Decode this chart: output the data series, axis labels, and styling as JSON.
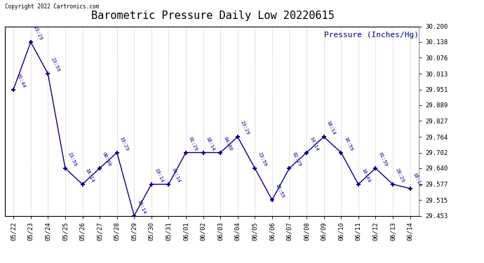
{
  "title": "Barometric Pressure Daily Low 20220615",
  "ylabel": "Pressure (Inches/Hg)",
  "copyright": "Copyright 2022 Cartronics.com",
  "line_color": "#00008B",
  "background_color": "#ffffff",
  "grid_color": "#c8c8c8",
  "ylim": [
    29.453,
    30.2
  ],
  "yticks": [
    29.453,
    29.515,
    29.577,
    29.64,
    29.702,
    29.764,
    29.827,
    29.889,
    29.951,
    30.013,
    30.076,
    30.138,
    30.2
  ],
  "data_points": [
    {
      "date": "05/22",
      "time": "01:44",
      "value": 29.951
    },
    {
      "date": "05/23",
      "time": "23:29",
      "value": 30.138
    },
    {
      "date": "05/24",
      "time": "23:59",
      "value": 30.013
    },
    {
      "date": "05/25",
      "time": "23:59",
      "value": 29.64
    },
    {
      "date": "05/26",
      "time": "18:14",
      "value": 29.577
    },
    {
      "date": "05/27",
      "time": "06:00",
      "value": 29.64
    },
    {
      "date": "05/28",
      "time": "19:29",
      "value": 29.702
    },
    {
      "date": "05/29",
      "time": "18:14",
      "value": 29.453
    },
    {
      "date": "05/30",
      "time": "19:14",
      "value": 29.577
    },
    {
      "date": "05/31",
      "time": "01:14",
      "value": 29.577
    },
    {
      "date": "06/01",
      "time": "01:29",
      "value": 29.702
    },
    {
      "date": "06/02",
      "time": "18:14",
      "value": 29.702
    },
    {
      "date": "06/03",
      "time": "04:00",
      "value": 29.702
    },
    {
      "date": "06/04",
      "time": "23:29",
      "value": 29.764
    },
    {
      "date": "06/05",
      "time": "23:59",
      "value": 29.64
    },
    {
      "date": "06/06",
      "time": "15:59",
      "value": 29.515
    },
    {
      "date": "06/07",
      "time": "02:29",
      "value": 29.64
    },
    {
      "date": "06/08",
      "time": "14:14",
      "value": 29.702
    },
    {
      "date": "06/09",
      "time": "18:14",
      "value": 29.764
    },
    {
      "date": "06/10",
      "time": "16:59",
      "value": 29.702
    },
    {
      "date": "06/11",
      "time": "10:44",
      "value": 29.577
    },
    {
      "date": "06/12",
      "time": "01:59",
      "value": 29.64
    },
    {
      "date": "06/13",
      "time": "20:29",
      "value": 29.577
    },
    {
      "date": "06/14",
      "time": "18:14",
      "value": 29.56
    }
  ]
}
